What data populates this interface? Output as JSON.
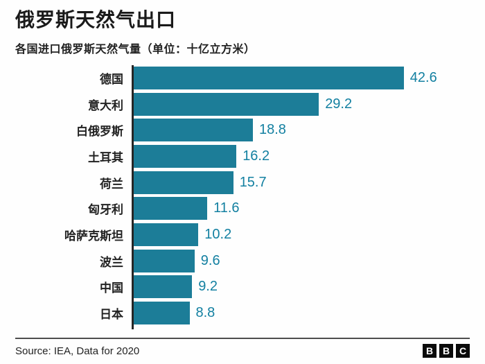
{
  "title": "俄罗斯天然气出口",
  "subtitle": "各国进口俄罗斯天然气量（单位：十亿立方米）",
  "chart_data": {
    "type": "bar",
    "orientation": "horizontal",
    "title": "俄罗斯天然气出口",
    "subtitle": "各国进口俄罗斯天然气量（单位：十亿立方米）",
    "unit": "十亿立方米",
    "categories": [
      "德国",
      "意大利",
      "白俄罗斯",
      "土耳其",
      "荷兰",
      "匈牙利",
      "哈萨克斯坦",
      "波兰",
      "中国",
      "日本"
    ],
    "values": [
      42.6,
      29.2,
      18.8,
      16.2,
      15.7,
      11.6,
      10.2,
      9.6,
      9.2,
      8.8
    ],
    "xlim": [
      0,
      46
    ],
    "grid": false,
    "value_labels": "outside-end",
    "bar_color": "#1c7d98",
    "value_label_color": "#1380a1",
    "axis_line_color": "#262626"
  },
  "footer": {
    "source": "Source: IEA, Data for 2020"
  },
  "logo": {
    "name": "BBC",
    "letters": [
      "B",
      "B",
      "C"
    ],
    "block_color": "#0a0a0a"
  }
}
